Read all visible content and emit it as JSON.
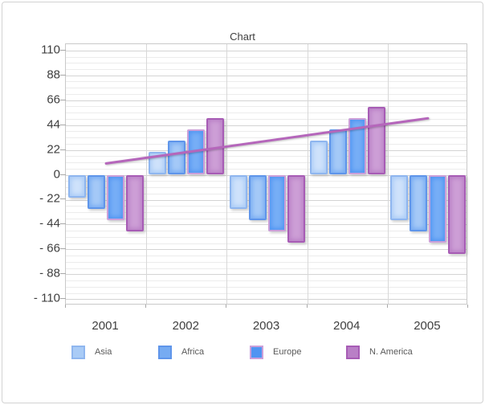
{
  "chart_data": {
    "type": "bar",
    "title": "Chart",
    "categories": [
      "2001",
      "2002",
      "2003",
      "2004",
      "2005"
    ],
    "series": [
      {
        "name": "Asia",
        "values": [
          -20,
          20,
          -30,
          30,
          -40
        ],
        "fill": "#a9cbf6",
        "fill_light": "#cfe2fb",
        "border": "#8fb6ef"
      },
      {
        "name": "Africa",
        "values": [
          -30,
          30,
          -40,
          40,
          -50
        ],
        "fill": "#76abf2",
        "fill_light": "#a5c9f7",
        "border": "#5f95ea"
      },
      {
        "name": "Europe",
        "values": [
          -40,
          40,
          -50,
          50,
          -60
        ],
        "fill": "#4f94f2",
        "fill_light": "#77aef6",
        "border": "#cb9fd9"
      },
      {
        "name": "N. America",
        "values": [
          -50,
          50,
          -60,
          60,
          -70
        ],
        "fill": "#b97fc6",
        "fill_light": "#cd9fd6",
        "border": "#a75cb5"
      }
    ],
    "trend_line": {
      "values": [
        10,
        20,
        30,
        40,
        50
      ],
      "color": "#b566bb"
    },
    "y_axis": {
      "min": -110,
      "max": 110,
      "major_step": 22,
      "minor_step": 5.5,
      "tick_labels": [
        "110",
        "88",
        "66",
        "44",
        "22",
        "0",
        "- 22",
        "- 44",
        "- 66",
        "- 88",
        "- 110"
      ]
    },
    "x_axis": {
      "tick_labels": [
        "2001",
        "2002",
        "2003",
        "2004",
        "2005"
      ]
    },
    "legend": {
      "position": "bottom",
      "labels": [
        "Asia",
        "Africa",
        "Europe",
        "N. America"
      ]
    },
    "grid": true
  }
}
